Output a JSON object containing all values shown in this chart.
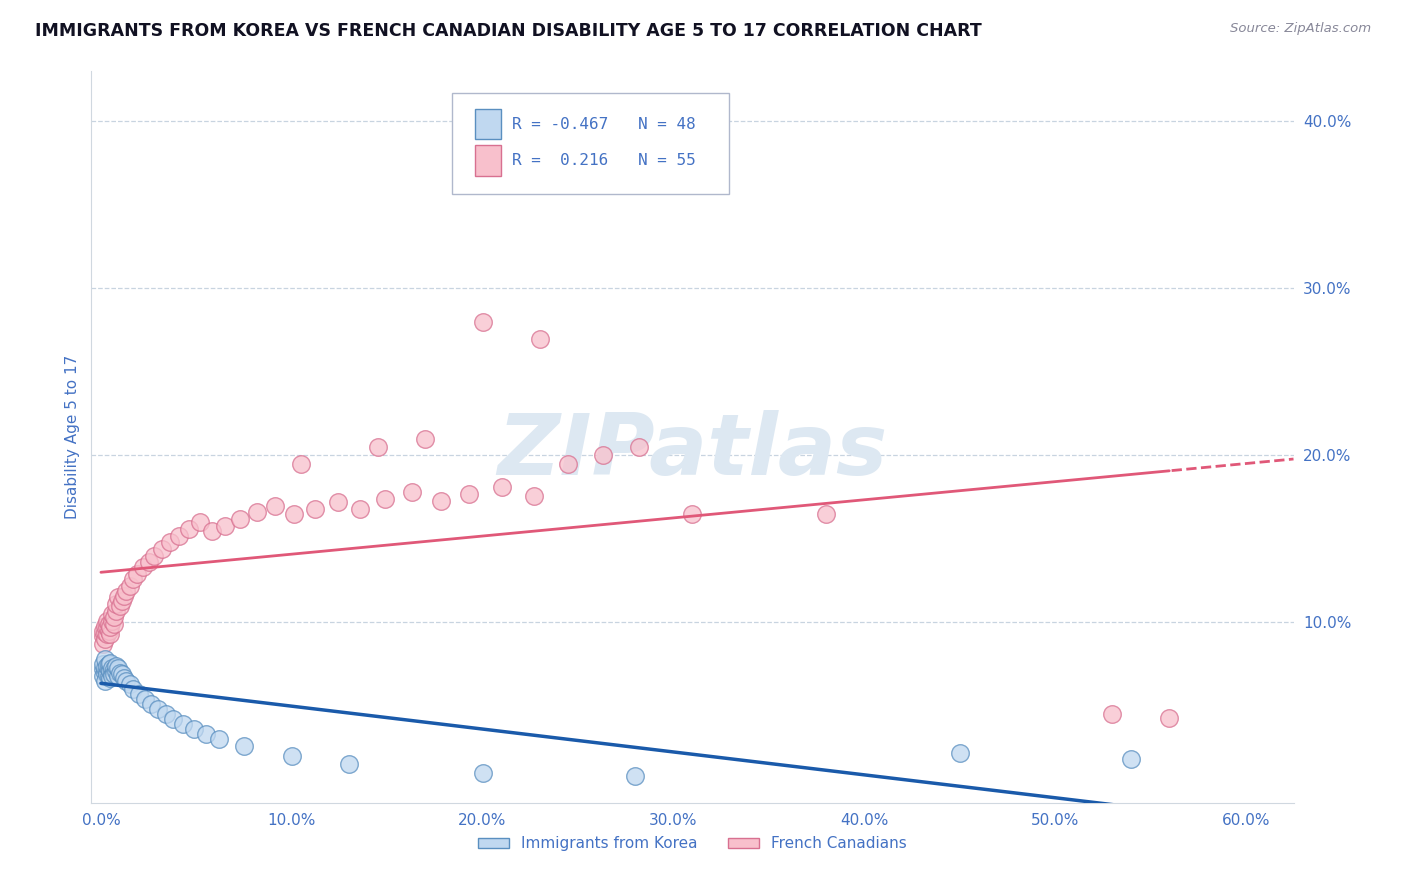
{
  "title": "IMMIGRANTS FROM KOREA VS FRENCH CANADIAN DISABILITY AGE 5 TO 17 CORRELATION CHART",
  "source_text": "Source: ZipAtlas.com",
  "ylabel": "Disability Age 5 to 17",
  "xlim": [
    -0.005,
    0.625
  ],
  "ylim": [
    -0.008,
    0.43
  ],
  "xtick_vals": [
    0.0,
    0.1,
    0.2,
    0.3,
    0.4,
    0.5,
    0.6
  ],
  "xtick_labels": [
    "0.0%",
    "10.0%",
    "20.0%",
    "30.0%",
    "40.0%",
    "50.0%",
    "60.0%"
  ],
  "ytick_vals_right": [
    0.1,
    0.2,
    0.3,
    0.4
  ],
  "ytick_labels_right": [
    "10.0%",
    "20.0%",
    "30.0%",
    "40.0%"
  ],
  "r_korea": -0.467,
  "n_korea": 48,
  "r_french": 0.216,
  "n_french": 55,
  "color_korea_fill": "#c0d8f0",
  "color_korea_edge": "#5a8fc0",
  "color_korea_line": "#1a5aaa",
  "color_french_fill": "#f8c0cc",
  "color_french_edge": "#d87090",
  "color_french_line": "#e05878",
  "color_tick": "#4472c4",
  "color_ylabel": "#4472c4",
  "color_legend_text": "#4472c4",
  "background": "#ffffff",
  "grid_color": "#c8d4e0",
  "watermark_color": "#dde8f2",
  "korea_x": [
    0.001,
    0.001,
    0.001,
    0.002,
    0.002,
    0.002,
    0.002,
    0.003,
    0.003,
    0.003,
    0.004,
    0.004,
    0.004,
    0.005,
    0.005,
    0.005,
    0.006,
    0.006,
    0.006,
    0.007,
    0.007,
    0.008,
    0.008,
    0.009,
    0.009,
    0.01,
    0.011,
    0.012,
    0.013,
    0.015,
    0.017,
    0.02,
    0.023,
    0.026,
    0.03,
    0.034,
    0.038,
    0.043,
    0.049,
    0.055,
    0.062,
    0.075,
    0.1,
    0.13,
    0.2,
    0.28,
    0.45,
    0.54
  ],
  "korea_y": [
    0.072,
    0.068,
    0.075,
    0.07,
    0.073,
    0.065,
    0.078,
    0.071,
    0.069,
    0.074,
    0.068,
    0.072,
    0.075,
    0.067,
    0.071,
    0.076,
    0.07,
    0.073,
    0.068,
    0.072,
    0.069,
    0.071,
    0.074,
    0.068,
    0.073,
    0.07,
    0.069,
    0.067,
    0.065,
    0.063,
    0.06,
    0.057,
    0.054,
    0.051,
    0.048,
    0.045,
    0.042,
    0.039,
    0.036,
    0.033,
    0.03,
    0.026,
    0.02,
    0.015,
    0.01,
    0.008,
    0.022,
    0.018
  ],
  "french_x": [
    0.001,
    0.001,
    0.001,
    0.002,
    0.002,
    0.002,
    0.003,
    0.003,
    0.003,
    0.004,
    0.004,
    0.005,
    0.005,
    0.006,
    0.006,
    0.007,
    0.007,
    0.008,
    0.008,
    0.009,
    0.01,
    0.011,
    0.012,
    0.013,
    0.015,
    0.017,
    0.019,
    0.022,
    0.025,
    0.028,
    0.032,
    0.036,
    0.041,
    0.046,
    0.052,
    0.058,
    0.065,
    0.073,
    0.082,
    0.091,
    0.101,
    0.112,
    0.124,
    0.136,
    0.149,
    0.163,
    0.178,
    0.193,
    0.21,
    0.227,
    0.245,
    0.263,
    0.282,
    0.53,
    0.56
  ],
  "french_y": [
    0.092,
    0.087,
    0.095,
    0.09,
    0.094,
    0.098,
    0.093,
    0.097,
    0.101,
    0.095,
    0.099,
    0.093,
    0.097,
    0.101,
    0.105,
    0.099,
    0.103,
    0.107,
    0.111,
    0.115,
    0.11,
    0.113,
    0.116,
    0.119,
    0.122,
    0.126,
    0.129,
    0.133,
    0.136,
    0.14,
    0.144,
    0.148,
    0.152,
    0.156,
    0.16,
    0.155,
    0.158,
    0.162,
    0.166,
    0.17,
    0.165,
    0.168,
    0.172,
    0.168,
    0.174,
    0.178,
    0.173,
    0.177,
    0.181,
    0.176,
    0.195,
    0.2,
    0.205,
    0.045,
    0.043
  ],
  "french_outliers_x": [
    0.105,
    0.145,
    0.17,
    0.2,
    0.23,
    0.31,
    0.38
  ],
  "french_outliers_y": [
    0.195,
    0.205,
    0.21,
    0.28,
    0.27,
    0.165,
    0.165
  ]
}
